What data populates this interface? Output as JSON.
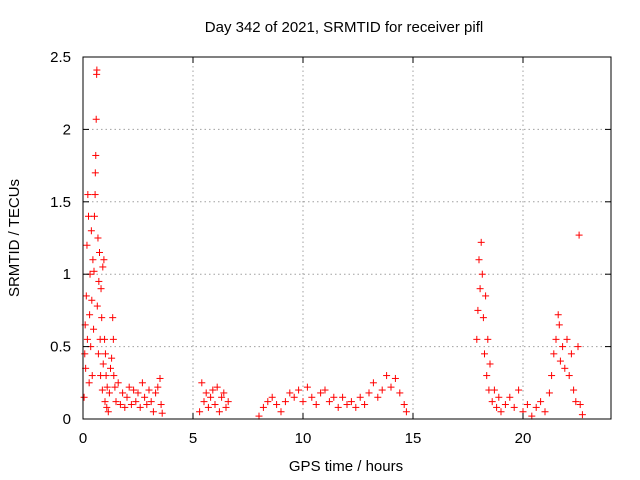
{
  "chart_data": {
    "type": "scatter",
    "title": "Day 342 of 2021, SRMTID for receiver pifl",
    "xlabel": "GPS time / hours",
    "ylabel": "SRMTID / TECUs",
    "xlim": [
      0,
      24
    ],
    "ylim": [
      0,
      2.5
    ],
    "x_ticks": [
      0,
      5,
      10,
      15,
      20
    ],
    "x_tick_labels": [
      "0",
      "5",
      "10",
      "15",
      "20"
    ],
    "y_ticks": [
      0,
      0.5,
      1,
      1.5,
      2,
      2.5
    ],
    "y_tick_labels": [
      "0",
      "0.5",
      "1",
      "1.5",
      "2",
      "2.5"
    ],
    "grid": true,
    "marker": "+",
    "color": "#ff0000",
    "series": [
      {
        "name": "SRMTID",
        "points": [
          [
            0.05,
            0.15
          ],
          [
            0.08,
            0.45
          ],
          [
            0.1,
            0.65
          ],
          [
            0.12,
            0.35
          ],
          [
            0.15,
            0.85
          ],
          [
            0.18,
            1.2
          ],
          [
            0.2,
            0.55
          ],
          [
            0.22,
            1.55
          ],
          [
            0.25,
            1.4
          ],
          [
            0.28,
            0.25
          ],
          [
            0.3,
            0.72
          ],
          [
            0.32,
            1.0
          ],
          [
            0.35,
            0.5
          ],
          [
            0.38,
            1.3
          ],
          [
            0.4,
            0.82
          ],
          [
            0.42,
            0.3
          ],
          [
            0.45,
            1.1
          ],
          [
            0.48,
            0.62
          ],
          [
            0.5,
            1.02
          ],
          [
            0.52,
            1.4
          ],
          [
            0.55,
            1.55
          ],
          [
            0.56,
            1.7
          ],
          [
            0.58,
            1.82
          ],
          [
            0.6,
            2.07
          ],
          [
            0.62,
            2.38
          ],
          [
            0.63,
            2.41
          ],
          [
            0.65,
            0.78
          ],
          [
            0.68,
            1.25
          ],
          [
            0.7,
            0.45
          ],
          [
            0.72,
            0.95
          ],
          [
            0.75,
            1.15
          ],
          [
            0.78,
            0.55
          ],
          [
            0.8,
            0.3
          ],
          [
            0.82,
            0.9
          ],
          [
            0.85,
            0.7
          ],
          [
            0.88,
            0.2
          ],
          [
            0.9,
            1.05
          ],
          [
            0.92,
            0.38
          ],
          [
            0.95,
            1.1
          ],
          [
            0.98,
            0.55
          ],
          [
            1.0,
            0.12
          ],
          [
            1.02,
            0.45
          ],
          [
            1.05,
            0.3
          ],
          [
            1.08,
            0.08
          ],
          [
            1.1,
            0.22
          ],
          [
            1.15,
            0.05
          ],
          [
            1.2,
            0.18
          ],
          [
            1.25,
            0.35
          ],
          [
            1.3,
            0.42
          ],
          [
            1.35,
            0.7
          ],
          [
            1.38,
            0.55
          ],
          [
            1.4,
            0.3
          ],
          [
            1.45,
            0.22
          ],
          [
            1.5,
            0.12
          ],
          [
            1.6,
            0.25
          ],
          [
            1.7,
            0.1
          ],
          [
            1.8,
            0.18
          ],
          [
            1.9,
            0.08
          ],
          [
            2.0,
            0.15
          ],
          [
            2.1,
            0.22
          ],
          [
            2.2,
            0.1
          ],
          [
            2.3,
            0.2
          ],
          [
            2.4,
            0.12
          ],
          [
            2.5,
            0.18
          ],
          [
            2.6,
            0.08
          ],
          [
            2.7,
            0.25
          ],
          [
            2.8,
            0.15
          ],
          [
            2.9,
            0.1
          ],
          [
            3.0,
            0.2
          ],
          [
            3.1,
            0.12
          ],
          [
            3.2,
            0.05
          ],
          [
            3.3,
            0.18
          ],
          [
            3.4,
            0.22
          ],
          [
            3.5,
            0.28
          ],
          [
            3.55,
            0.1
          ],
          [
            3.6,
            0.04
          ],
          [
            5.3,
            0.05
          ],
          [
            5.4,
            0.25
          ],
          [
            5.5,
            0.12
          ],
          [
            5.6,
            0.18
          ],
          [
            5.7,
            0.08
          ],
          [
            5.8,
            0.15
          ],
          [
            5.9,
            0.2
          ],
          [
            6.0,
            0.1
          ],
          [
            6.1,
            0.22
          ],
          [
            6.2,
            0.05
          ],
          [
            6.3,
            0.15
          ],
          [
            6.4,
            0.18
          ],
          [
            6.5,
            0.08
          ],
          [
            6.6,
            0.12
          ],
          [
            8.0,
            0.02
          ],
          [
            8.2,
            0.08
          ],
          [
            8.4,
            0.12
          ],
          [
            8.6,
            0.15
          ],
          [
            8.8,
            0.1
          ],
          [
            9.0,
            0.05
          ],
          [
            9.2,
            0.12
          ],
          [
            9.4,
            0.18
          ],
          [
            9.6,
            0.15
          ],
          [
            9.8,
            0.2
          ],
          [
            10.0,
            0.12
          ],
          [
            10.2,
            0.22
          ],
          [
            10.4,
            0.15
          ],
          [
            10.6,
            0.1
          ],
          [
            10.8,
            0.18
          ],
          [
            11.0,
            0.2
          ],
          [
            11.2,
            0.12
          ],
          [
            11.4,
            0.15
          ],
          [
            11.6,
            0.08
          ],
          [
            11.8,
            0.15
          ],
          [
            12.0,
            0.1
          ],
          [
            12.2,
            0.12
          ],
          [
            12.4,
            0.08
          ],
          [
            12.6,
            0.15
          ],
          [
            12.8,
            0.1
          ],
          [
            13.0,
            0.18
          ],
          [
            13.2,
            0.25
          ],
          [
            13.4,
            0.15
          ],
          [
            13.6,
            0.2
          ],
          [
            13.8,
            0.3
          ],
          [
            14.0,
            0.22
          ],
          [
            14.2,
            0.28
          ],
          [
            14.4,
            0.18
          ],
          [
            14.6,
            0.1
          ],
          [
            14.7,
            0.05
          ],
          [
            17.9,
            0.55
          ],
          [
            17.95,
            0.75
          ],
          [
            18.0,
            1.1
          ],
          [
            18.05,
            0.9
          ],
          [
            18.1,
            1.22
          ],
          [
            18.15,
            1.0
          ],
          [
            18.2,
            0.7
          ],
          [
            18.25,
            0.45
          ],
          [
            18.3,
            0.85
          ],
          [
            18.35,
            0.3
          ],
          [
            18.4,
            0.55
          ],
          [
            18.45,
            0.2
          ],
          [
            18.5,
            0.38
          ],
          [
            18.6,
            0.12
          ],
          [
            18.7,
            0.2
          ],
          [
            18.8,
            0.08
          ],
          [
            18.9,
            0.15
          ],
          [
            19.0,
            0.05
          ],
          [
            19.2,
            0.1
          ],
          [
            19.4,
            0.15
          ],
          [
            19.6,
            0.08
          ],
          [
            19.8,
            0.2
          ],
          [
            20.0,
            0.05
          ],
          [
            20.2,
            0.1
          ],
          [
            20.4,
            0.02
          ],
          [
            20.6,
            0.08
          ],
          [
            20.8,
            0.12
          ],
          [
            21.0,
            0.05
          ],
          [
            21.2,
            0.18
          ],
          [
            21.3,
            0.3
          ],
          [
            21.4,
            0.45
          ],
          [
            21.5,
            0.55
          ],
          [
            21.6,
            0.72
          ],
          [
            21.65,
            0.65
          ],
          [
            21.7,
            0.4
          ],
          [
            21.8,
            0.5
          ],
          [
            21.9,
            0.35
          ],
          [
            22.0,
            0.55
          ],
          [
            22.1,
            0.3
          ],
          [
            22.2,
            0.45
          ],
          [
            22.3,
            0.2
          ],
          [
            22.4,
            0.12
          ],
          [
            22.5,
            0.5
          ],
          [
            22.55,
            1.27
          ],
          [
            22.6,
            0.1
          ],
          [
            22.7,
            0.03
          ]
        ]
      }
    ]
  }
}
